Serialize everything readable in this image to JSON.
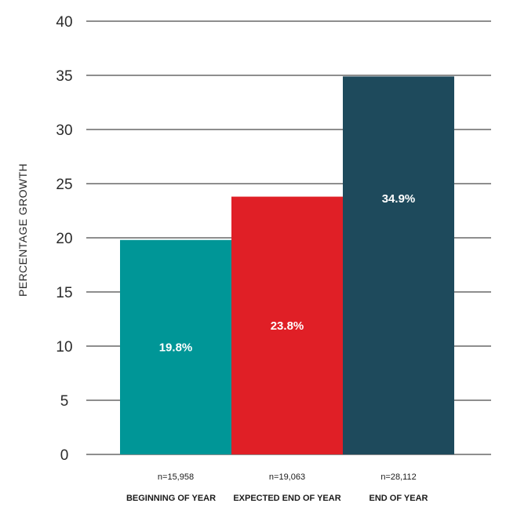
{
  "chart_data": {
    "type": "bar",
    "categories": [
      "BEGINNING OF YEAR",
      "EXPECTED END OF YEAR",
      "END OF YEAR"
    ],
    "sample_sizes": [
      "n=15,958",
      "n=19,063",
      "n=28,112"
    ],
    "values": [
      19.8,
      23.8,
      34.9
    ],
    "data_labels": [
      "19.8%",
      "23.8%",
      "34.9%"
    ],
    "bar_colors": [
      "#009697",
      "#e01f26",
      "#1e4a5c"
    ],
    "ylabel": "PERCENTAGE GROWTH",
    "xlabel": "",
    "title": "",
    "ylim": [
      0,
      40
    ],
    "yticks": [
      0,
      5,
      10,
      15,
      20,
      25,
      30,
      35,
      40
    ],
    "grid": true,
    "legend": "none"
  }
}
